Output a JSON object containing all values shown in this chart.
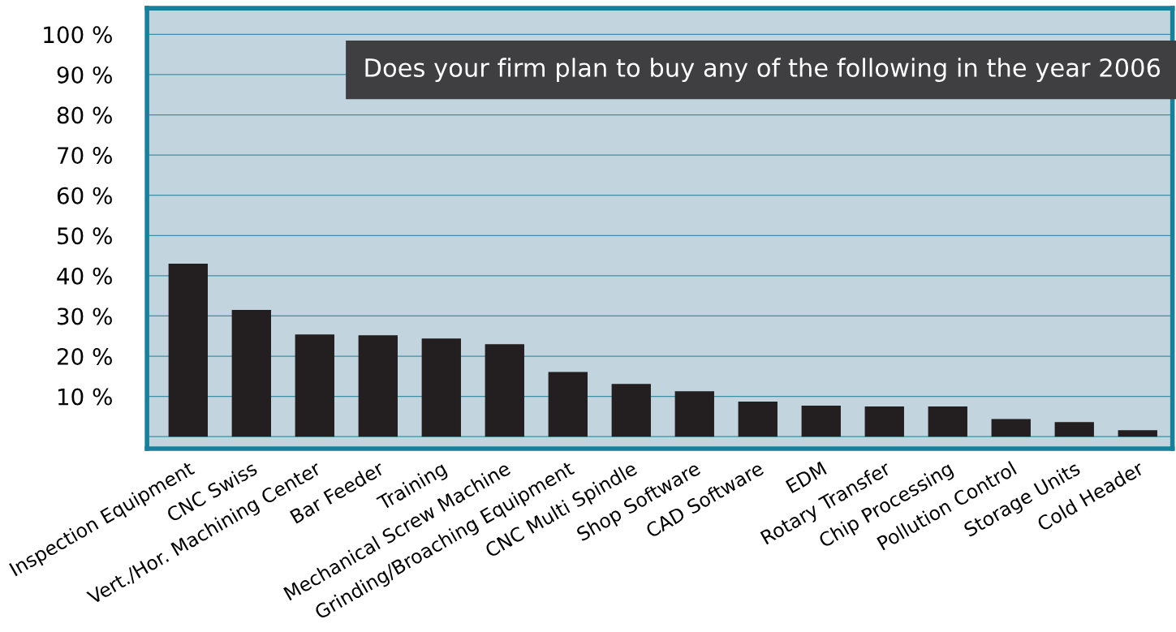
{
  "chart_data": {
    "type": "bar",
    "title": "Does your firm plan to buy any of the following in the year 2006",
    "categories": [
      "Inspection Equipment",
      "CNC Swiss",
      "Vert./Hor. Machining Center",
      "Bar Feeder",
      "Training",
      "Mechanical Screw Machine",
      "Grinding/Broaching Equipment",
      "CNC Multi Spindle",
      "Shop Software",
      "CAD Software",
      "EDM",
      "Rotary Transfer",
      "Chip Processing",
      "Pollution Control",
      "Storage Units",
      "Cold Header"
    ],
    "values": [
      43,
      31.5,
      25.4,
      25.2,
      24.4,
      23,
      16.1,
      13.1,
      11.3,
      8.7,
      7.7,
      7.5,
      7.5,
      4.4,
      3.6,
      1.6
    ],
    "color": "#231f20",
    "ylim": [
      -3,
      106.5
    ],
    "yticks": [
      {
        "value": 0,
        "label": null
      },
      {
        "value": 10,
        "label": "10 %"
      },
      {
        "value": 20,
        "label": "20 %"
      },
      {
        "value": 30,
        "label": "30 %"
      },
      {
        "value": 40,
        "label": "40 %"
      },
      {
        "value": 50,
        "label": "50 %"
      },
      {
        "value": 60,
        "label": "60 %"
      },
      {
        "value": 70,
        "label": "70 %"
      },
      {
        "value": 80,
        "label": "80 %"
      },
      {
        "value": 90,
        "label": "90 %"
      },
      {
        "value": 100,
        "label": "100 %"
      }
    ],
    "grid": "y"
  }
}
